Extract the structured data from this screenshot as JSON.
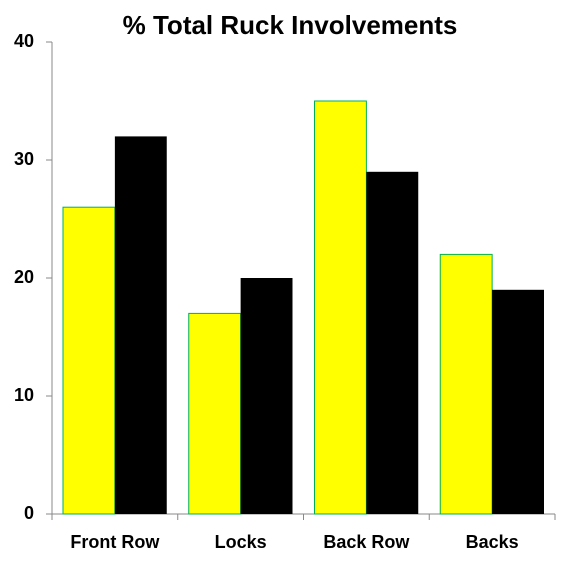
{
  "chart_data": {
    "type": "bar",
    "title": "% Total Ruck Involvements",
    "categories": [
      "Front Row",
      "Locks",
      "Back Row",
      "Backs"
    ],
    "series": [
      {
        "color": "#ffff00",
        "edgecolor": "#00b050",
        "values": [
          26,
          17,
          35,
          22
        ]
      },
      {
        "color": "#000000",
        "values": [
          32,
          20,
          29,
          19
        ]
      }
    ],
    "ylim": [
      0,
      40
    ],
    "yticks": [
      0,
      10,
      20,
      30,
      40
    ],
    "grid": false
  }
}
